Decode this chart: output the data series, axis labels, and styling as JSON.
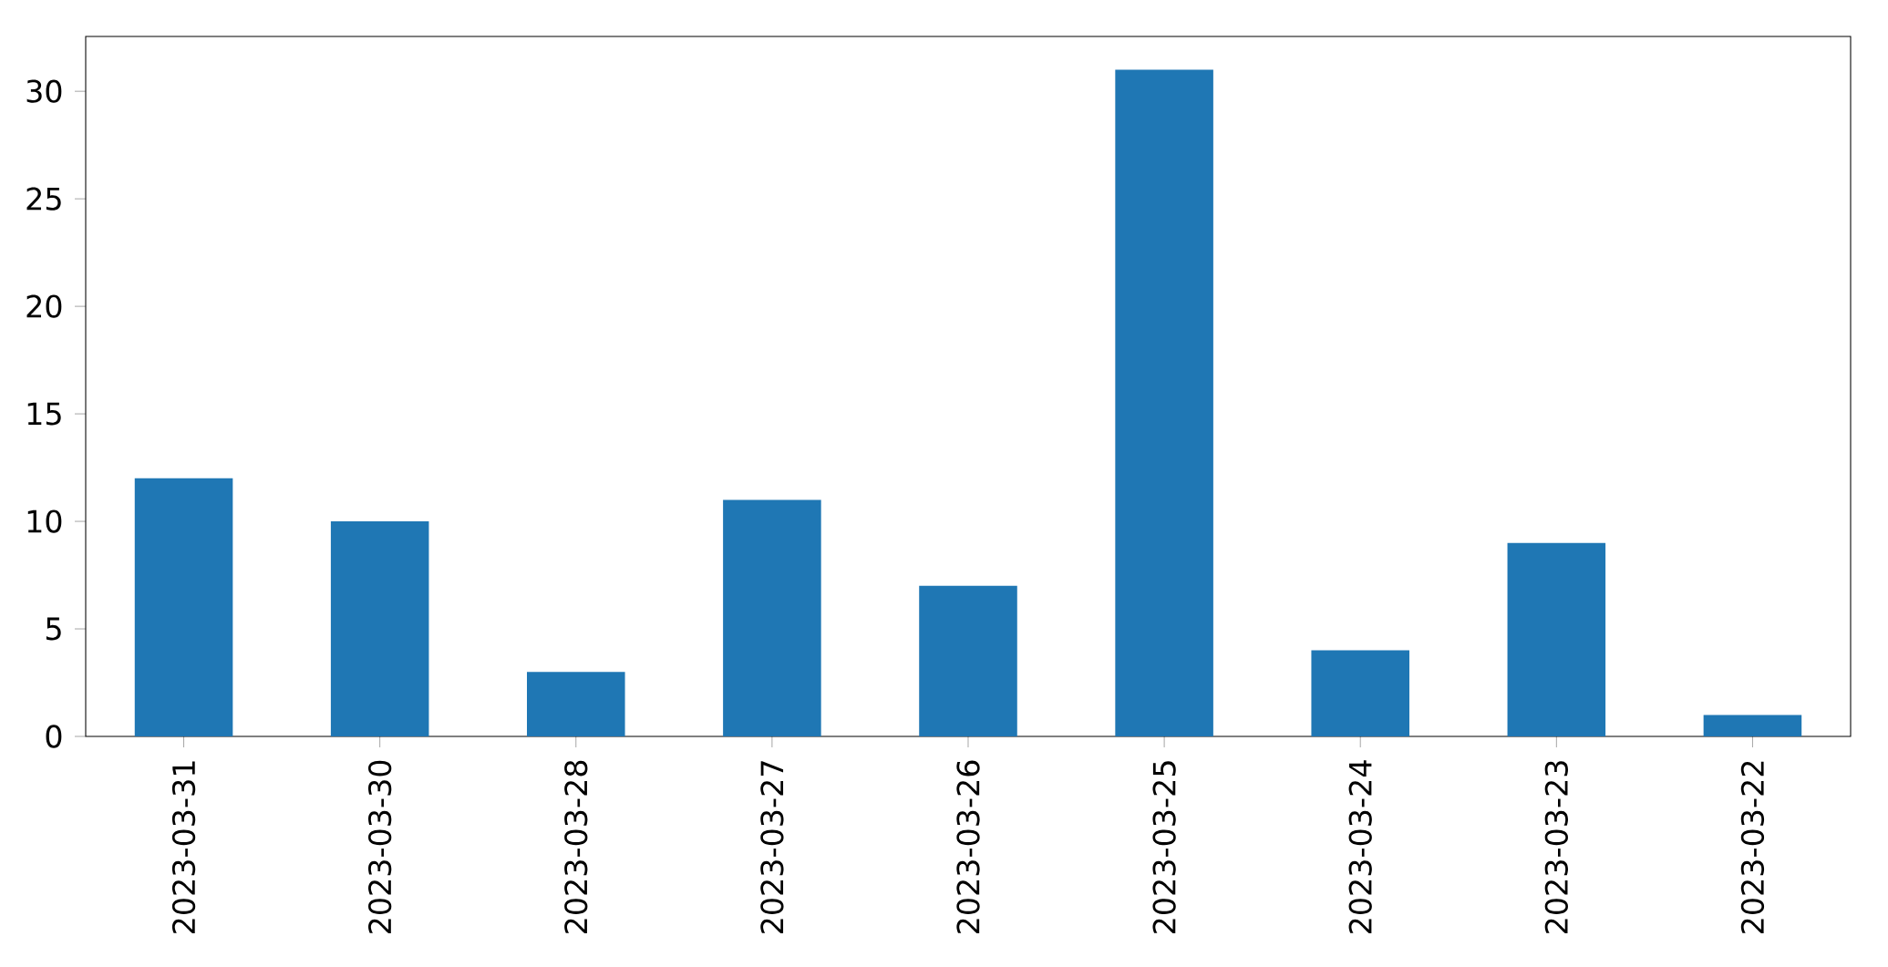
{
  "chart_data": {
    "type": "bar",
    "categories": [
      "2023-03-31",
      "2023-03-30",
      "2023-03-28",
      "2023-03-27",
      "2023-03-26",
      "2023-03-25",
      "2023-03-24",
      "2023-03-23",
      "2023-03-22"
    ],
    "values": [
      12,
      10,
      3,
      11,
      7,
      31,
      4,
      9,
      1
    ],
    "color": "#1f77b4",
    "ylim": [
      0,
      32.55
    ],
    "yticks": [
      0,
      5,
      10,
      15,
      20,
      25,
      30
    ]
  }
}
